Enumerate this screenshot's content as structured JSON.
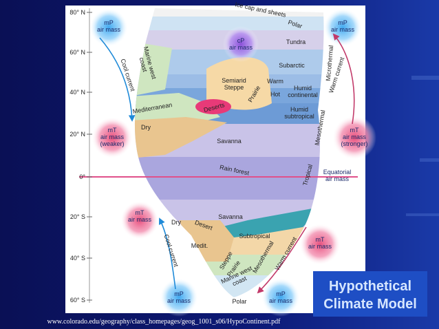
{
  "title": [
    "Hypothetical",
    "Climate Model"
  ],
  "source": "www.colorado.edu/geography/class_homepages/geog_1001_s06/HypoContinent.pdf",
  "latitudes": [
    "80° N",
    "60° N",
    "40° N",
    "20° N",
    "0°",
    "20° S",
    "40° S",
    "60° S"
  ],
  "air_masses": [
    {
      "lines": [
        "mP",
        "air mass"
      ]
    },
    {
      "lines": [
        "mP",
        "air mass"
      ]
    },
    {
      "lines": [
        "cP",
        "air mass"
      ]
    },
    {
      "lines": [
        "mT",
        "air mass",
        "(weaker)"
      ]
    },
    {
      "lines": [
        "mT",
        "air mass",
        "(stronger)"
      ]
    },
    {
      "lines": [
        "Equatorial",
        "air mass"
      ]
    },
    {
      "lines": [
        "mT",
        "air mass"
      ]
    },
    {
      "lines": [
        "mT",
        "air mass"
      ]
    },
    {
      "lines": [
        "mP",
        "air mass"
      ]
    },
    {
      "lines": [
        "mP",
        "air mass"
      ]
    }
  ],
  "currents": [
    "Cool current",
    "Warm current",
    "Cool current",
    "Warm current"
  ],
  "zones": [
    {
      "lines": [
        "Ice cap and sheets"
      ]
    },
    {
      "lines": [
        "Polar"
      ]
    },
    {
      "lines": [
        "Tundra"
      ]
    },
    {
      "lines": [
        "Subarctic"
      ]
    },
    {
      "lines": [
        "Marine west",
        "coast"
      ]
    },
    {
      "lines": [
        "Semiarid",
        "Steppe"
      ]
    },
    {
      "lines": [
        "Prairie"
      ]
    },
    {
      "lines": [
        "Warm"
      ]
    },
    {
      "lines": [
        "Hot"
      ]
    },
    {
      "lines": [
        "Humid",
        "continental"
      ]
    },
    {
      "lines": [
        "Mediterranean"
      ]
    },
    {
      "lines": [
        "Deserts"
      ]
    },
    {
      "lines": [
        "Humid",
        "subtropical"
      ]
    },
    {
      "lines": [
        "Dry"
      ]
    },
    {
      "lines": [
        "Savanna"
      ]
    },
    {
      "lines": [
        "Rain forest"
      ]
    },
    {
      "lines": [
        "Microthermal"
      ]
    },
    {
      "lines": [
        "Mesothermal"
      ]
    },
    {
      "lines": [
        "Tropical"
      ]
    },
    {
      "lines": [
        "Savanna"
      ]
    },
    {
      "lines": [
        "Dry"
      ]
    },
    {
      "lines": [
        "Desert"
      ]
    },
    {
      "lines": [
        "Subtropical"
      ]
    },
    {
      "lines": [
        "Medit."
      ]
    },
    {
      "lines": [
        "Steppe"
      ]
    },
    {
      "lines": [
        "Prairie"
      ]
    },
    {
      "lines": [
        "Marine west",
        "coast"
      ]
    },
    {
      "lines": [
        "Mesothermal"
      ]
    },
    {
      "lines": [
        "Polar"
      ]
    }
  ]
}
